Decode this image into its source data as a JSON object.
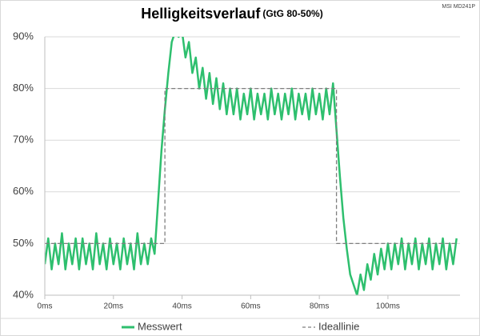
{
  "chart_data": {
    "type": "line",
    "title": "Helligkeitsverlauf",
    "subtitle": "(GtG 80-50%)",
    "annotation": "MSI MD241P",
    "xlim": [
      0,
      121
    ],
    "ylim": [
      40,
      90
    ],
    "xticks": [
      {
        "value": 0,
        "label": "0ms"
      },
      {
        "value": 20,
        "label": "20ms"
      },
      {
        "value": 40,
        "label": "40ms"
      },
      {
        "value": 60,
        "label": "60ms"
      },
      {
        "value": 80,
        "label": "80ms"
      },
      {
        "value": 100,
        "label": "100ms"
      }
    ],
    "yticks": [
      {
        "value": 40,
        "label": "40%"
      },
      {
        "value": 50,
        "label": "50%"
      },
      {
        "value": 60,
        "label": "60%"
      },
      {
        "value": 70,
        "label": "70%"
      },
      {
        "value": 80,
        "label": "80%"
      },
      {
        "value": 90,
        "label": "90%"
      }
    ],
    "grid": true,
    "series": [
      {
        "name": "Messwert",
        "color": "#2ebf6e",
        "x": [
          0,
          1,
          2,
          3,
          4,
          5,
          6,
          7,
          8,
          9,
          10,
          11,
          12,
          13,
          14,
          15,
          16,
          17,
          18,
          19,
          20,
          21,
          22,
          23,
          24,
          25,
          26,
          27,
          28,
          29,
          30,
          31,
          32,
          33,
          34,
          35,
          36,
          37,
          38,
          39,
          40,
          41,
          42,
          43,
          44,
          45,
          46,
          47,
          48,
          49,
          50,
          51,
          52,
          53,
          54,
          55,
          56,
          57,
          58,
          59,
          60,
          61,
          62,
          63,
          64,
          65,
          66,
          67,
          68,
          69,
          70,
          71,
          72,
          73,
          74,
          75,
          76,
          77,
          78,
          79,
          80,
          81,
          82,
          83,
          84,
          85,
          86,
          87,
          88,
          89,
          90,
          91,
          92,
          93,
          94,
          95,
          96,
          97,
          98,
          99,
          100,
          101,
          102,
          103,
          104,
          105,
          106,
          107,
          108,
          109,
          110,
          111,
          112,
          113,
          114,
          115,
          116,
          117,
          118,
          119,
          120
        ],
        "values": [
          46,
          51,
          45,
          50,
          46,
          52,
          45,
          50,
          46,
          51,
          45,
          51,
          46,
          50,
          45,
          52,
          46,
          50,
          45,
          51,
          46,
          50,
          45,
          51,
          46,
          50,
          45,
          52,
          46,
          50,
          46,
          51,
          48,
          58,
          68,
          76,
          83,
          89,
          91,
          90,
          91,
          86,
          89,
          83,
          86,
          80,
          84,
          78,
          83,
          77,
          82,
          76,
          81,
          75,
          80,
          75,
          80,
          74,
          79,
          75,
          80,
          74,
          79,
          75,
          79,
          74,
          80,
          75,
          79,
          74,
          79,
          75,
          80,
          74,
          79,
          75,
          79,
          74,
          80,
          75,
          79,
          74,
          80,
          75,
          81,
          72,
          63,
          55,
          49,
          44,
          42,
          40,
          44,
          41,
          46,
          43,
          48,
          44,
          49,
          45,
          50,
          45,
          50,
          46,
          51,
          45,
          50,
          46,
          51,
          45,
          50,
          46,
          51,
          45,
          50,
          46,
          51,
          45,
          50,
          46,
          51
        ]
      },
      {
        "name": "Ideallinie",
        "color": "#7f7f7f",
        "dash": true,
        "x": [
          0,
          35,
          35,
          85,
          85,
          120
        ],
        "values": [
          50,
          50,
          80,
          80,
          50,
          50
        ]
      }
    ]
  }
}
